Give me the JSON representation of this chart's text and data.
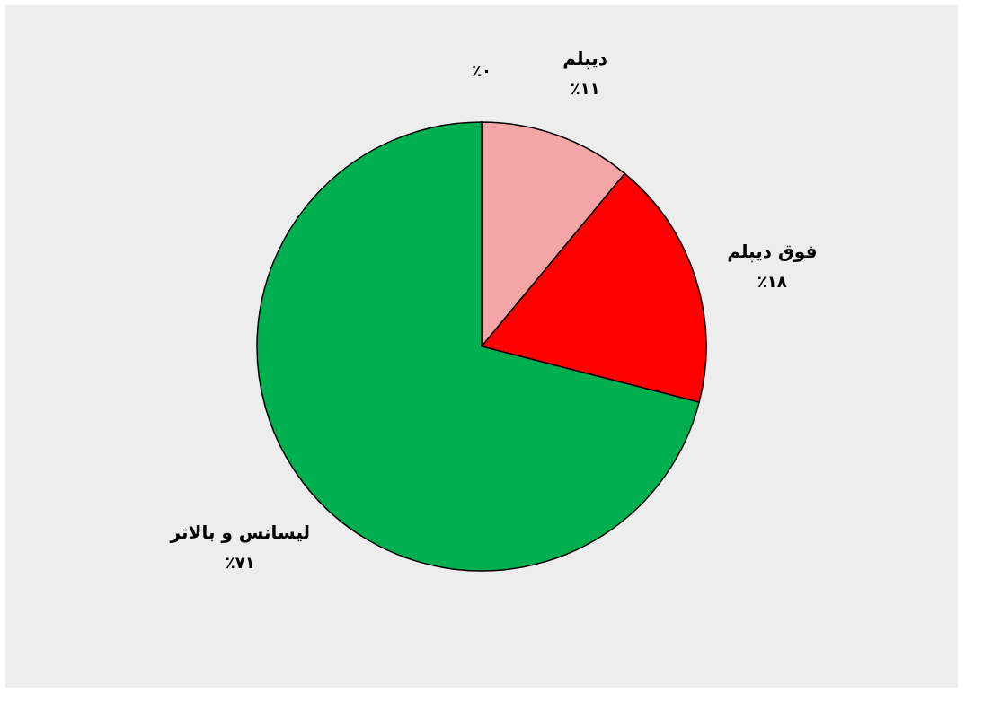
{
  "chart_data": {
    "type": "pie",
    "categories": [
      null,
      "دیپلم",
      "فوق دیپلم",
      "لیسانس و بالاتر"
    ],
    "values": [
      0,
      11,
      18,
      71
    ],
    "value_labels": [
      "٪۰",
      "٪۱۱",
      "٪۱۸",
      "٪۷۱"
    ],
    "colors": [
      "#ffffff",
      "#f4a6a6",
      "#ff0000",
      "#00b050"
    ],
    "legend": false
  }
}
